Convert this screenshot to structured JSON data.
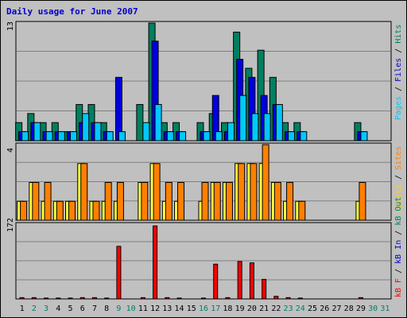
{
  "title": "Daily usage for June 2007",
  "chart_data": {
    "type": "bar",
    "title": "Daily usage for June 2007",
    "categories": [
      "1",
      "2",
      "3",
      "4",
      "5",
      "6",
      "7",
      "8",
      "9",
      "10",
      "11",
      "12",
      "13",
      "14",
      "15",
      "16",
      "17",
      "18",
      "19",
      "20",
      "21",
      "22",
      "23",
      "24",
      "25",
      "26",
      "27",
      "28",
      "29",
      "30",
      "31"
    ],
    "weekend_days": [
      "2",
      "3",
      "9",
      "10",
      "16",
      "17",
      "23",
      "24",
      "30",
      "31"
    ],
    "panels": [
      {
        "name": "hits-files-pages",
        "ymax_label": "13",
        "ylim": [
          0,
          13
        ],
        "axis_label_parts": [
          {
            "text": "Pages",
            "color": "#00c8ff"
          },
          {
            "text": " / ",
            "color": "#000000"
          },
          {
            "text": "Files",
            "color": "#0000cc"
          },
          {
            "text": " / ",
            "color": "#000000"
          },
          {
            "text": "Hits",
            "color": "#008060"
          }
        ],
        "series": [
          {
            "name": "Hits",
            "color": "#008060",
            "values": [
              2,
              3,
              2,
              2,
              1,
              4,
              4,
              2,
              0,
              0,
              4,
              13,
              2,
              2,
              0,
              2,
              3,
              2,
              12,
              8,
              10,
              7,
              2,
              2,
              0,
              0,
              0,
              0,
              2,
              0,
              0
            ]
          },
          {
            "name": "Files",
            "color": "#0000e0",
            "values": [
              1,
              2,
              1,
              1,
              1,
              2,
              2,
              1,
              7,
              0,
              0,
              11,
              1,
              1,
              0,
              1,
              5,
              1,
              9,
              7,
              5,
              4,
              1,
              1,
              0,
              0,
              0,
              0,
              1,
              0,
              0
            ]
          },
          {
            "name": "Pages",
            "color": "#00c8ff",
            "values": [
              1,
              2,
              1,
              1,
              1,
              3,
              2,
              1,
              1,
              0,
              2,
              4,
              1,
              1,
              0,
              1,
              1,
              2,
              5,
              3,
              3,
              4,
              1,
              1,
              0,
              0,
              0,
              0,
              1,
              0,
              0
            ]
          }
        ]
      },
      {
        "name": "visits-sites",
        "ymax_label": "4",
        "ylim": [
          0,
          4
        ],
        "axis_label_parts": [
          {
            "text": "Visits",
            "color": "#ffd000"
          },
          {
            "text": " / ",
            "color": "#000000"
          },
          {
            "text": "Sites",
            "color": "#ff8000"
          }
        ],
        "series": [
          {
            "name": "Visits",
            "color": "#ffff40",
            "values": [
              1,
              2,
              1,
              1,
              1,
              3,
              1,
              1,
              1,
              0,
              2,
              3,
              1,
              1,
              0,
              1,
              2,
              2,
              3,
              3,
              3,
              2,
              1,
              1,
              0,
              0,
              0,
              0,
              1,
              0,
              0
            ]
          },
          {
            "name": "Sites",
            "color": "#ff8000",
            "values": [
              1,
              2,
              2,
              1,
              1,
              3,
              1,
              2,
              2,
              0,
              2,
              3,
              2,
              2,
              0,
              2,
              2,
              2,
              3,
              3,
              4,
              2,
              2,
              1,
              0,
              0,
              0,
              0,
              2,
              0,
              0
            ]
          }
        ]
      },
      {
        "name": "kb",
        "ymax_label": "172",
        "ylim": [
          0,
          172
        ],
        "axis_label_parts": [
          {
            "text": "kB F",
            "color": "#ff0000"
          },
          {
            "text": " / ",
            "color": "#000000"
          },
          {
            "text": "kB In",
            "color": "#0000cc"
          },
          {
            "text": " / ",
            "color": "#000000"
          },
          {
            "text": "kB Out",
            "color": "#008060"
          }
        ],
        "series": [
          {
            "name": "kB F",
            "color": "#ff0000",
            "values": [
              3,
              3,
              2,
              2,
              2,
              3,
              3,
              2,
              121,
              0,
              3,
              168,
              3,
              2,
              0,
              2,
              80,
              3,
              86,
              83,
              45,
              6,
              3,
              2,
              0,
              0,
              0,
              0,
              3,
              0,
              0
            ]
          }
        ]
      }
    ]
  }
}
